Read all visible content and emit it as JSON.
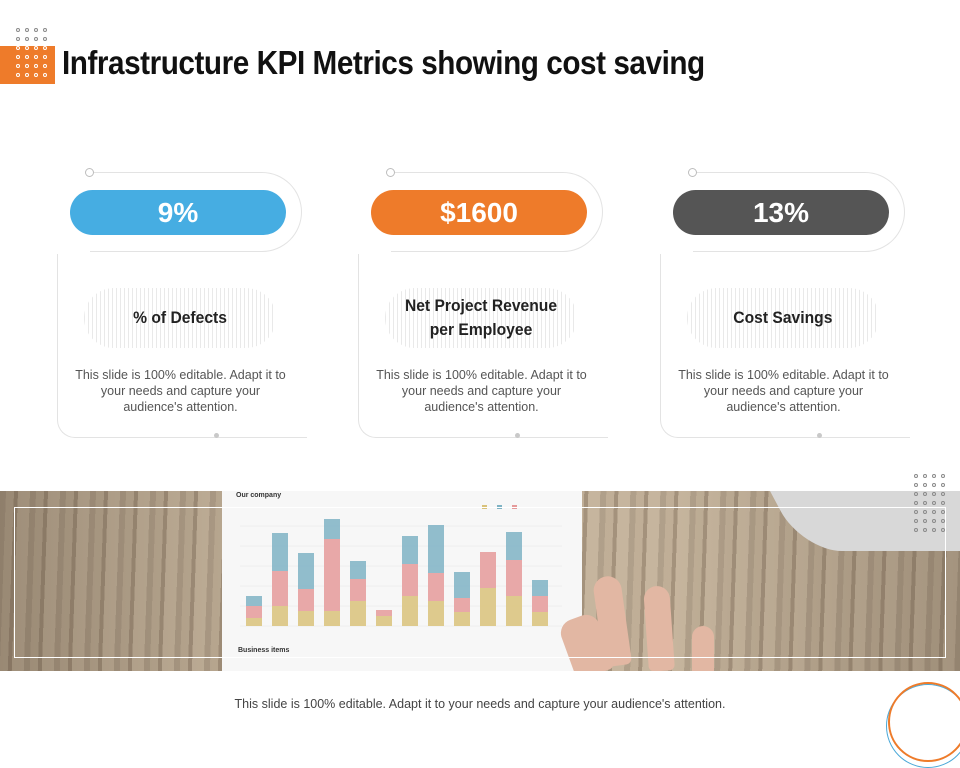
{
  "header": {
    "title": "Infrastructure KPI Metrics showing cost saving"
  },
  "colors": {
    "accent_orange": "#ee7b2a",
    "accent_blue": "#46ade2",
    "accent_gray": "#555555"
  },
  "cards": [
    {
      "value": "9%",
      "label": "% of Defects",
      "color": "#46ade2",
      "description": "This slide is 100% editable. Adapt it to your needs and capture your audience's attention."
    },
    {
      "value": "$1600",
      "label": "Net Project Revenue per Employee",
      "color": "#ee7b2a",
      "description": "This slide is 100% editable. Adapt it to your needs and capture your audience's attention."
    },
    {
      "value": "13%",
      "label": "Cost Savings",
      "color": "#555555",
      "description": "This slide is 100% editable. Adapt it to your needs and capture your audience's attention."
    }
  ],
  "photo": {
    "paper_title": "Our company",
    "paper_footer": "Business items"
  },
  "footer": {
    "text": "This slide is 100% editable. Adapt it to your needs and capture your audience's attention."
  }
}
